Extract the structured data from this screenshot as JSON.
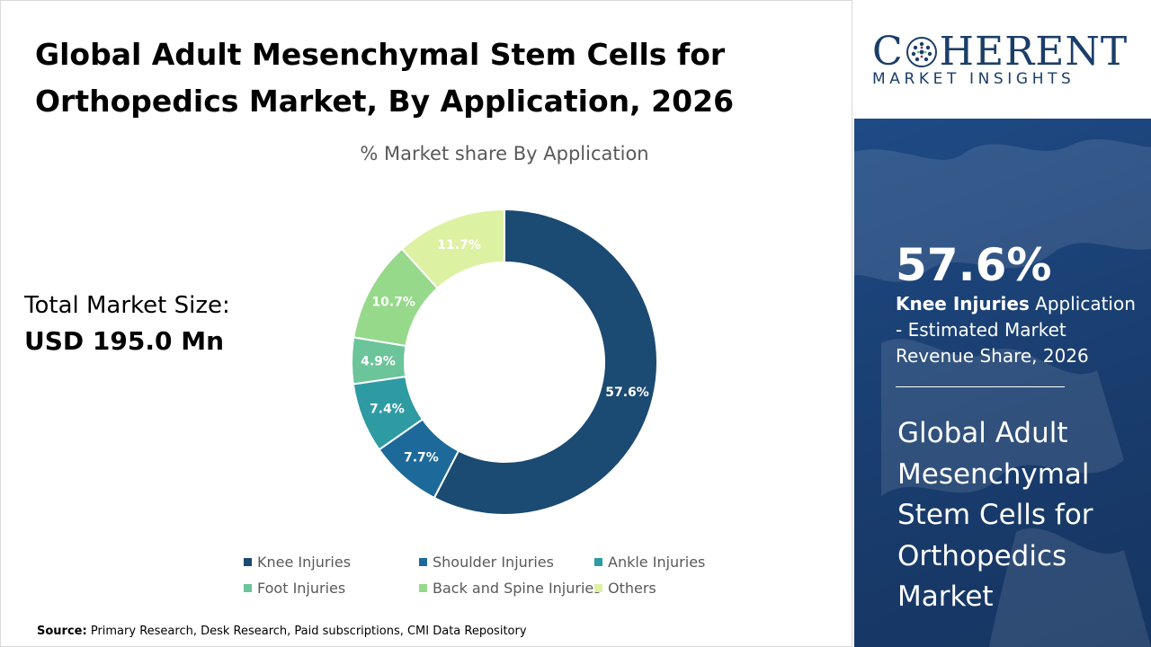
{
  "page": {
    "title": "Global Adult Mesenchymal Stem Cells for Orthopedics Market, By Application, 2026",
    "market_size_label": "Total Market Size:",
    "market_size_value": "USD 195.0 Mn",
    "source_label": "Source:",
    "source_text": "Primary Research, Desk Research, Paid subscriptions, CMI Data Repository"
  },
  "branding": {
    "logo_left": "C",
    "logo_right": "HERENT",
    "logo_sub": "MARKET INSIGHTS",
    "color": "#1b3e69"
  },
  "sidebar": {
    "kpi_value": "57.6%",
    "kpi_bold": "Knee Injuries",
    "kpi_text": " Application - Estimated Market Revenue Share, 2026",
    "title": "Global Adult Mesenchymal Stem Cells for Orthopedics Market"
  },
  "chart_data": {
    "type": "pie",
    "donut": true,
    "title": "% Market share By Application",
    "unit": "%",
    "categories": [
      "Knee Injuries",
      "Shoulder Injuries",
      "Ankle Injuries",
      "Foot Injuries",
      "Back and Spine Injuries",
      "Others"
    ],
    "values": [
      57.6,
      7.7,
      7.4,
      4.9,
      10.7,
      11.7
    ],
    "labels": [
      "57.6%",
      "7.7%",
      "7.4%",
      "4.9%",
      "10.7%",
      "11.7%"
    ],
    "colors": [
      "#1b4a72",
      "#1d6a9a",
      "#2e9ba3",
      "#6cc49a",
      "#97d98b",
      "#ddf1a3"
    ],
    "legend_colors": [
      "#1b4a72",
      "#1d6a9a",
      "#2e9ba3",
      "#6cc49a",
      "#97d98b",
      "#ddf1a3"
    ],
    "label_colors": [
      "#ffffff",
      "#ffffff",
      "#ffffff",
      "#ffffff",
      "#ffffff",
      "#ffffff"
    ],
    "legend_position": "bottom",
    "start_angle_deg": 0,
    "direction": "clockwise"
  }
}
